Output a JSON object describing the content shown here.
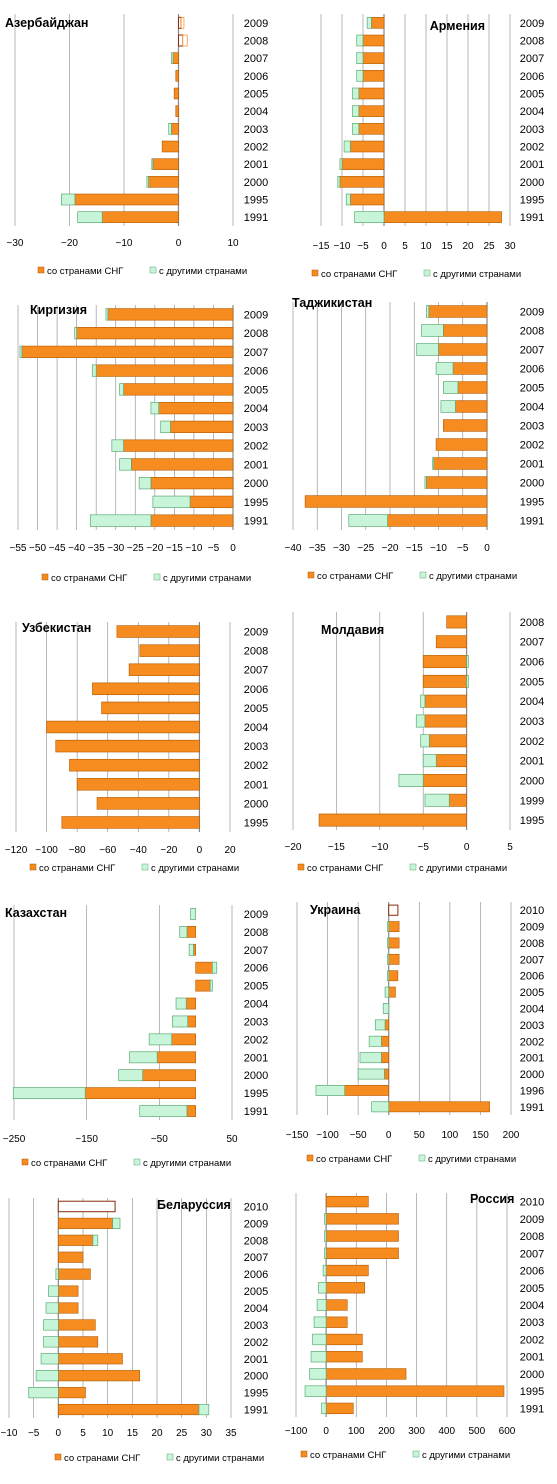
{
  "colors": {
    "cis": "#f68b1f",
    "cis_stroke": "#b35a00",
    "other": "#c8f5d9",
    "other_stroke": "#5aab75",
    "grid": "#999999",
    "axis": "#888888"
  },
  "legend": {
    "cis": "со странами СНГ",
    "other": "с другими странами"
  },
  "chart_data": [
    {
      "type": "bar",
      "orientation": "horizontal-stacked",
      "title": "Азербайджан",
      "years": [
        "2009",
        "2008",
        "2007",
        "2006",
        "2005",
        "2004",
        "2003",
        "2002",
        "2001",
        "2000",
        "1995",
        "1991"
      ],
      "series": [
        {
          "name": "со странами СНГ",
          "values": [
            0.5,
            0.8,
            -1.0,
            -0.5,
            -0.8,
            -0.5,
            -1.3,
            -3.0,
            -4.7,
            -5.5,
            -19.0,
            -14.0
          ]
        },
        {
          "name": "с другими странами",
          "values": [
            0.5,
            0.8,
            -0.3,
            0.0,
            0.0,
            0.0,
            -0.5,
            0.0,
            -0.2,
            -0.3,
            -2.5,
            -4.5
          ]
        }
      ],
      "hollow_years": [
        "2009",
        "2008"
      ],
      "xlim": [
        -30,
        10
      ],
      "ticks": [
        -30,
        -20,
        -10,
        0,
        10
      ]
    },
    {
      "type": "bar",
      "orientation": "horizontal-stacked",
      "title": "Армения",
      "years": [
        "2009",
        "2008",
        "2007",
        "2006",
        "2005",
        "2004",
        "2003",
        "2002",
        "2001",
        "2000",
        "1995",
        "1991"
      ],
      "series": [
        {
          "name": "со странами СНГ",
          "values": [
            -3.0,
            -5.0,
            -5.0,
            -5.0,
            -6.0,
            -6.0,
            -6.0,
            -8.0,
            -10.0,
            -10.5,
            -8.0,
            28.0
          ]
        },
        {
          "name": "с другими странами",
          "values": [
            -1.0,
            -1.5,
            -1.5,
            -1.5,
            -1.5,
            -1.5,
            -1.5,
            -1.5,
            -0.5,
            -0.5,
            -1.0,
            -7.0
          ]
        }
      ],
      "hollow_years": [],
      "xlim": [
        -15,
        30
      ],
      "ticks": [
        -15,
        -10,
        -5,
        0,
        5,
        10,
        15,
        20,
        25,
        30
      ]
    },
    {
      "type": "bar",
      "orientation": "horizontal-stacked",
      "title": "Киргизия",
      "years": [
        "2009",
        "2008",
        "2007",
        "2006",
        "2005",
        "2004",
        "2003",
        "2002",
        "2001",
        "2000",
        "1995",
        "1991"
      ],
      "series": [
        {
          "name": "со странами СНГ",
          "values": [
            -32.0,
            -40.0,
            -54.0,
            -35.0,
            -28.0,
            -19.0,
            -16.0,
            -28.0,
            -26.0,
            -21.0,
            -11.0,
            -21.0
          ]
        },
        {
          "name": "с другими странами",
          "values": [
            -0.5,
            -0.5,
            -0.5,
            -1.0,
            -1.0,
            -2.0,
            -2.5,
            -3.0,
            -3.0,
            -3.0,
            -9.5,
            -15.5
          ]
        }
      ],
      "hollow_years": [],
      "xlim": [
        -55,
        0
      ],
      "ticks": [
        -55,
        -50,
        -45,
        -40,
        -35,
        -30,
        -25,
        -20,
        -15,
        -10,
        -5,
        0
      ]
    },
    {
      "type": "bar",
      "orientation": "horizontal-stacked",
      "title": "Таджикистан",
      "years": [
        "2009",
        "2008",
        "2007",
        "2006",
        "2005",
        "2004",
        "2003",
        "2002",
        "2001",
        "2000",
        "1995",
        "1991"
      ],
      "series": [
        {
          "name": "со странами СНГ",
          "values": [
            -12.0,
            -9.0,
            -10.0,
            -7.0,
            -6.0,
            -6.5,
            -9.0,
            -10.5,
            -11.0,
            -12.5,
            -37.5,
            -20.5
          ]
        },
        {
          "name": "с другими странами",
          "values": [
            -0.5,
            -4.5,
            -4.5,
            -3.5,
            -3.0,
            -3.0,
            0.0,
            0.0,
            -0.2,
            -0.3,
            0.0,
            -8.0
          ]
        }
      ],
      "hollow_years": [],
      "xlim": [
        -40,
        0
      ],
      "ticks": [
        -40,
        -35,
        -30,
        -25,
        -20,
        -15,
        -10,
        -5,
        0
      ]
    },
    {
      "type": "bar",
      "orientation": "horizontal-stacked",
      "title": "Узбекистан",
      "years": [
        "2009",
        "2008",
        "2007",
        "2006",
        "2005",
        "2004",
        "2003",
        "2002",
        "2001",
        "2000",
        "1995"
      ],
      "series": [
        {
          "name": "со странами СНГ",
          "values": [
            -54,
            -39,
            -46,
            -70,
            -64,
            -100,
            -94,
            -85,
            -80,
            -67,
            -90
          ]
        },
        {
          "name": "с другими странами",
          "values": [
            0,
            0,
            0,
            0,
            0,
            0,
            0,
            0,
            0,
            0,
            0
          ]
        }
      ],
      "hollow_years": [],
      "xlim": [
        -120,
        20
      ],
      "ticks": [
        -120,
        -100,
        -80,
        -60,
        -40,
        -20,
        0,
        20
      ]
    },
    {
      "type": "bar",
      "orientation": "horizontal-stacked",
      "title": "Молдавия",
      "years": [
        "2008",
        "2007",
        "2006",
        "2005",
        "2004",
        "2003",
        "2002",
        "2001",
        "2000",
        "1999",
        "1995"
      ],
      "series": [
        {
          "name": "со странами СНГ",
          "values": [
            -2.3,
            -3.5,
            -5.0,
            -5.0,
            -4.8,
            -4.8,
            -4.3,
            -3.5,
            -5.0,
            -2.0,
            -17.0
          ]
        },
        {
          "name": "с другими странами",
          "values": [
            0.0,
            0.0,
            0.2,
            0.2,
            -0.5,
            -1.0,
            -1.0,
            -1.5,
            -2.8,
            -2.8,
            0.0
          ]
        }
      ],
      "hollow_years": [],
      "xlim": [
        -20,
        5
      ],
      "ticks": [
        -20,
        -15,
        -10,
        -5,
        0,
        5
      ]
    },
    {
      "type": "bar",
      "orientation": "horizontal-stacked",
      "title": "Казахстан",
      "years": [
        "2009",
        "2008",
        "2007",
        "2006",
        "2005",
        "2004",
        "2003",
        "2002",
        "2001",
        "2000",
        "1995",
        "1991"
      ],
      "series": [
        {
          "name": "со странами СНГ",
          "values": [
            0,
            -12,
            -3,
            23,
            20,
            -13,
            -11,
            -33,
            -53,
            -73,
            -152,
            -12
          ]
        },
        {
          "name": "с другими странами",
          "values": [
            -7,
            -10,
            -6,
            6,
            3,
            -14,
            -21,
            -31,
            -38,
            -33,
            -99,
            -65
          ]
        }
      ],
      "hollow_years": [],
      "xlim": [
        -250,
        50
      ],
      "ticks": [
        -250,
        -150,
        -50,
        50
      ]
    },
    {
      "type": "bar",
      "orientation": "horizontal-stacked",
      "title": "Украина",
      "years": [
        "2010",
        "2009",
        "2008",
        "2007",
        "2006",
        "2005",
        "2004",
        "2003",
        "2002",
        "2001",
        "2000",
        "1996",
        "1991"
      ],
      "series": [
        {
          "name": "со странами СНГ",
          "values": [
            15,
            17,
            17,
            17,
            15,
            11,
            0,
            -6,
            -12,
            -12,
            -7,
            -72,
            165
          ]
        },
        {
          "name": "с другими странами",
          "values": [
            0,
            -2,
            -2,
            -2,
            -2,
            -6,
            -9,
            -16,
            -20,
            -35,
            -43,
            -47,
            -28
          ]
        }
      ],
      "hollow_years": [
        "2010"
      ],
      "xlim": [
        -150,
        200
      ],
      "ticks": [
        -150,
        -100,
        -50,
        0,
        50,
        100,
        150,
        200
      ]
    },
    {
      "type": "bar",
      "orientation": "horizontal-stacked",
      "title": "Беларуссия",
      "years": [
        "2010",
        "2009",
        "2008",
        "2007",
        "2006",
        "2005",
        "2004",
        "2003",
        "2002",
        "2001",
        "2000",
        "1995",
        "1991"
      ],
      "series": [
        {
          "name": "со странами СНГ",
          "values": [
            11.5,
            11.0,
            7.0,
            5.0,
            6.5,
            4.0,
            4.0,
            7.5,
            8.0,
            13.0,
            16.5,
            5.5,
            28.5
          ]
        },
        {
          "name": "с другими странами",
          "values": [
            0.0,
            1.5,
            1.0,
            0.0,
            -0.5,
            -2.0,
            -2.5,
            -3.0,
            -3.0,
            -3.5,
            -4.5,
            -6.0,
            2.0
          ]
        }
      ],
      "hollow_years": [
        "2010"
      ],
      "xlim": [
        -10,
        35
      ],
      "ticks": [
        -10,
        -5,
        0,
        5,
        10,
        15,
        20,
        25,
        30,
        35
      ]
    },
    {
      "type": "bar",
      "orientation": "horizontal-stacked",
      "title": "Россия",
      "years": [
        "2010",
        "2009",
        "2008",
        "2007",
        "2006",
        "2005",
        "2004",
        "2003",
        "2002",
        "2001",
        "2000",
        "1995",
        "1991"
      ],
      "series": [
        {
          "name": "со странами СНГ",
          "values": [
            140,
            240,
            240,
            240,
            140,
            128,
            70,
            70,
            120,
            120,
            265,
            590,
            90
          ]
        },
        {
          "name": "с другими странами",
          "values": [
            0,
            -5,
            -5,
            -5,
            -10,
            -25,
            -30,
            -40,
            -45,
            -50,
            -55,
            -70,
            -15
          ]
        }
      ],
      "hollow_years": [],
      "xlim": [
        -100,
        600
      ],
      "ticks": [
        -100,
        0,
        100,
        200,
        300,
        400,
        500,
        600
      ]
    }
  ]
}
